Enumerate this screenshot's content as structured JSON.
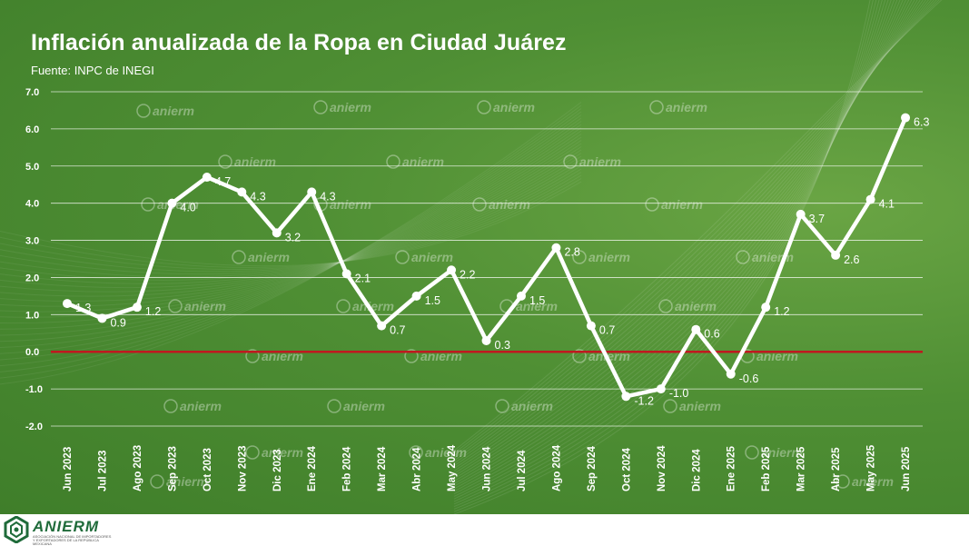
{
  "header": {
    "title": "Inflación anualizada de la Ropa en Ciudad Juárez",
    "subtitle": "Fuente: INPC de INEGI"
  },
  "footer": {
    "brand": "ANIERM",
    "tagline": "ASOCIACIÓN NACIONAL DE IMPORTADORES Y EXPORTADORES DE LA REPÚBLICA MEXICANA"
  },
  "watermark": {
    "text": "anierm"
  },
  "colors": {
    "background": "#4f8f34",
    "series_line": "#ffffff",
    "zero_line": "#c0181f",
    "gridline": "#ffffff",
    "brand": "#1f6b3a"
  },
  "chart_data": {
    "type": "line",
    "title": "Inflación anualizada de la Ropa en Ciudad Juárez",
    "subtitle": "Fuente: INPC de INEGI",
    "xlabel": "",
    "ylabel": "",
    "ylim": [
      -2.0,
      7.0
    ],
    "yticks": [
      "7.0",
      "6.0",
      "5.0",
      "4.0",
      "3.0",
      "2.0",
      "1.0",
      "0.0",
      "-1.0",
      "-2.0"
    ],
    "grid": true,
    "legend": "none",
    "reference_line": 0.0,
    "categories": [
      "Jun 2023",
      "Jul 2023",
      "Ago 2023",
      "Sep 2023",
      "Oct 2023",
      "Nov 2023",
      "Dic 2023",
      "Ene 2024",
      "Feb 2024",
      "Mar 2024",
      "Abr 2024",
      "May 2024",
      "Jun 2024",
      "Jul 2024",
      "Ago 2024",
      "Sep 2024",
      "Oct 2024",
      "Nov 2024",
      "Dic 2024",
      "Ene 2025",
      "Feb 2025",
      "Mar 2025",
      "Abr 2025",
      "May 2025",
      "Jun 2025"
    ],
    "values": [
      1.3,
      0.9,
      1.2,
      4.0,
      4.7,
      4.3,
      3.2,
      4.3,
      2.1,
      0.7,
      1.5,
      2.2,
      0.3,
      1.5,
      2.8,
      0.7,
      -1.2,
      -1.0,
      0.6,
      -0.6,
      1.2,
      3.7,
      2.6,
      4.1,
      6.3
    ],
    "labels": [
      "1.3",
      "0.9",
      "1.2",
      "4.0",
      "4.7",
      "4.3",
      "3.2",
      "4.3",
      "2.1",
      "0.7",
      "1.5",
      "2.2",
      "0.3",
      "1.5",
      "2.8",
      "0.7",
      "-1.2",
      "-1.0",
      "0.6",
      "-0.6",
      "1.2",
      "3.7",
      "2.6",
      "4.1",
      "6.3"
    ]
  }
}
